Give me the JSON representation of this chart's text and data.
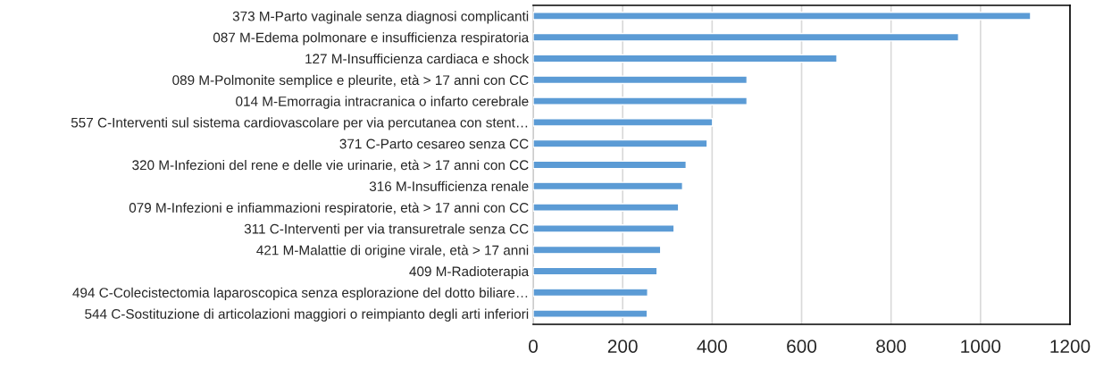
{
  "chart_data": {
    "type": "bar",
    "orientation": "horizontal",
    "categories": [
      "373 M-Parto vaginale senza diagnosi complicanti",
      "087 M-Edema polmonare e insufficienza respiratoria",
      "127 M-Insufficienza cardiaca e shock",
      "089 M-Polmonite semplice e pleurite, età > 17 anni con CC",
      "014 M-Emorragia intracranica o infarto cerebrale",
      "557 C-Interventi sul sistema cardiovascolare per via percutanea con stent…",
      "371 C-Parto cesareo senza CC",
      "320 M-Infezioni del rene e delle vie urinarie, età > 17 anni con CC",
      "316 M-Insufficienza renale",
      "079 M-Infezioni e infiammazioni respiratorie, età > 17 anni con CC",
      "311 C-Interventi per via transuretrale senza CC",
      "421 M-Malattie di origine virale, età > 17 anni",
      "409 M-Radioterapia",
      "494 C-Colecistectomia laparoscopica senza esplorazione del dotto biliare…",
      "544 C-Sostituzione di articolazioni maggiori o reimpianto degli arti inferiori"
    ],
    "values": [
      1112,
      951,
      679,
      478,
      478,
      401,
      389,
      342,
      334,
      325,
      315,
      285,
      277,
      256,
      255
    ],
    "color": "#5b9bd5",
    "xlim": [
      0,
      1200
    ],
    "xticks": [
      0,
      200,
      400,
      600,
      800,
      1000,
      1200
    ],
    "grid": "x"
  }
}
